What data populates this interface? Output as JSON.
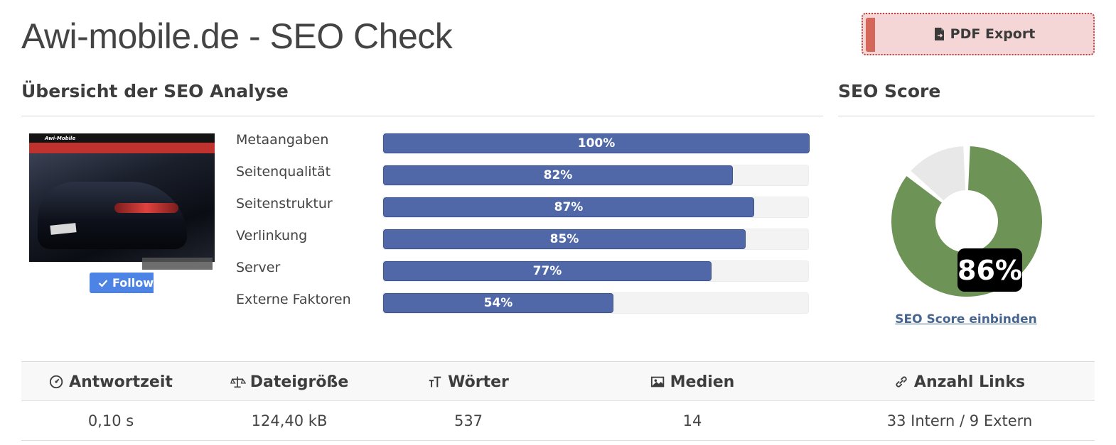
{
  "header": {
    "title": "Awi-mobile.de - SEO Check",
    "pdf_export_label": "PDF Export"
  },
  "overview": {
    "heading": "Übersicht der SEO Analyse",
    "thumbnail": {
      "logo_text": "Awi-Mobile"
    },
    "follow_label": "Follow",
    "metrics": [
      {
        "label": "Metaangaben",
        "value": 100,
        "text": "100%"
      },
      {
        "label": "Seitenqualität",
        "value": 82,
        "text": "82%"
      },
      {
        "label": "Seitenstruktur",
        "value": 87,
        "text": "87%"
      },
      {
        "label": "Verlinkung",
        "value": 85,
        "text": "85%"
      },
      {
        "label": "Server",
        "value": 77,
        "text": "77%"
      },
      {
        "label": "Externe Faktoren",
        "value": 54,
        "text": "54%"
      }
    ]
  },
  "score": {
    "heading": "SEO Score",
    "value": 86,
    "text": "86%",
    "embed_link": "SEO Score einbinden",
    "colors": {
      "filled": "#6e9357",
      "remaining": "#e8e8e8"
    }
  },
  "stats": {
    "columns": [
      {
        "icon": "gauge-icon",
        "header": "Antwortzeit",
        "value": "0,10 s"
      },
      {
        "icon": "scale-icon",
        "header": "Dateigröße",
        "value": "124,40 kB"
      },
      {
        "icon": "text-size-icon",
        "header": "Wörter",
        "value": "537"
      },
      {
        "icon": "image-icon",
        "header": "Medien",
        "value": "14"
      },
      {
        "icon": "link-icon",
        "header": "Anzahl Links",
        "value": "33 Intern / 9 Extern"
      }
    ]
  },
  "colors": {
    "bar": "#5068a8",
    "accent_red": "#d4665a"
  }
}
